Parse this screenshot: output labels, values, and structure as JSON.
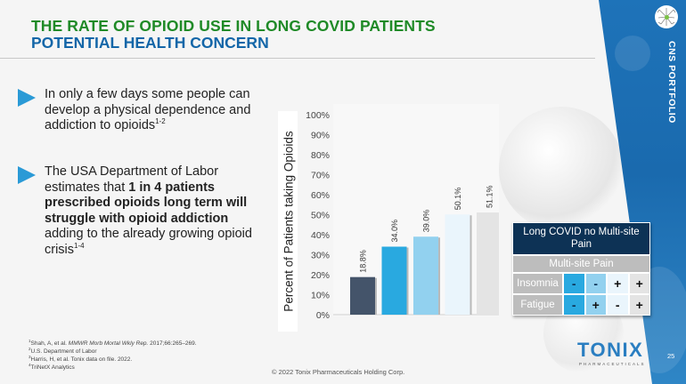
{
  "header": {
    "title_line1": "THE RATE OF OPIOID USE IN LONG COVID PATIENTS",
    "title_line2": "POTENTIAL HEALTH CONCERN",
    "title_line1_color": "#1f8a27",
    "title_line2_color": "#1366a8"
  },
  "side_panel": {
    "label": "CNS PORTFOLIO",
    "icon": "neuron-icon",
    "color": "#1e73b9"
  },
  "bullets": [
    {
      "icon": "triangle-arrow-icon",
      "text_before": "In only a few days some people can develop a physical dependence and addiction to opioids",
      "superscript": "1-2"
    },
    {
      "icon": "triangle-arrow-icon",
      "text_before": "The USA Department of Labor estimates that ",
      "text_bold": "1 in 4 patients prescribed opioids long term will struggle with opioid addiction",
      "text_after": " adding to the already growing opioid crisis",
      "superscript": "1-4"
    }
  ],
  "chart_data": {
    "type": "bar",
    "title": "",
    "xlabel": "",
    "ylabel": "Percent of Patients taking Opioids",
    "ylim": [
      0,
      100
    ],
    "yticks": [
      "0%",
      "10%",
      "20%",
      "30%",
      "40%",
      "50%",
      "60%",
      "70%",
      "80%",
      "90%",
      "100%"
    ],
    "grid": false,
    "categories": [
      "Long COVID no Multi-site Pain",
      "Multi-site Pain, Insomnia -, Fatigue -",
      "Multi-site Pain, Insomnia -, Fatigue +",
      "Multi-site Pain, Insomnia +, Fatigue -",
      "Multi-site Pain, Insomnia +, Fatigue +"
    ],
    "values": [
      18.8,
      34.0,
      39.0,
      50.1,
      51.1
    ],
    "data_labels": [
      "18.8%",
      "34.0%",
      "39.0%",
      "50.1%",
      "51.1%"
    ],
    "colors": [
      "#44546a",
      "#29a9e0",
      "#92d1ef",
      "#eaf5fc",
      "#e4e4e4"
    ]
  },
  "legend_table": {
    "header": "Long COVID no Multi-site Pain",
    "header_color": "#0d3255",
    "subheader": "Multi-site Pain",
    "rows": [
      {
        "label": "Insomnia",
        "cells": [
          "-",
          "-",
          "+",
          "+"
        ]
      },
      {
        "label": "Fatigue",
        "cells": [
          "-",
          "+",
          "-",
          "+"
        ]
      }
    ],
    "column_colors": [
      "#29a9e0",
      "#92d1ef",
      "#eaf5fc",
      "#e4e4e4"
    ]
  },
  "footnotes": [
    {
      "num": "1",
      "text": "Shah, A, et al. ",
      "italic": "MMWR Morb Mortal Wkly Rep.",
      "after": " 2017;66:265–269."
    },
    {
      "num": "2",
      "text": "U.S. Department of Labor"
    },
    {
      "num": "3",
      "text": "Harris, H, et al. Tonix data on file. 2022."
    },
    {
      "num": "4",
      "text": "TriNetX Analytics"
    }
  ],
  "footer": {
    "copyright": "© 2022 Tonix Pharmaceuticals Holding Corp.",
    "page_number": "25",
    "logo_word": "TONIX",
    "logo_sub": "PHARMACEUTICALS"
  }
}
